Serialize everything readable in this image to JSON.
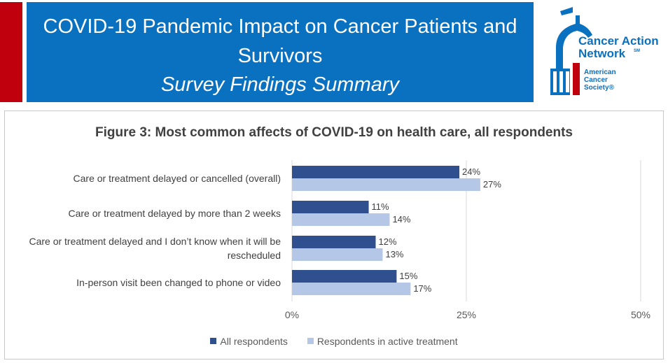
{
  "header": {
    "title": "COVID-19 Pandemic Impact on Cancer Patients and Survivors",
    "subtitle": "Survey Findings Summary"
  },
  "logo": {
    "line1": "Cancer Action",
    "line2": "Network",
    "mark": "SM",
    "org1": "American",
    "org2": "Cancer",
    "org3": "Society®"
  },
  "colors": {
    "accent_red": "#c0000c",
    "header_blue": "#0a70c0",
    "series_all": "#2f4f8f",
    "series_active": "#b4c7e7"
  },
  "chart_data": {
    "type": "bar",
    "orientation": "horizontal",
    "title": "Figure 3: Most common affects of COVID-19 on health care, all respondents",
    "categories": [
      "Care or treatment delayed or cancelled (overall)",
      "Care or treatment delayed by more than 2 weeks",
      "Care or treatment delayed and I don’t know when it will be rescheduled",
      "In-person visit been changed to phone or video"
    ],
    "series": [
      {
        "name": "All respondents",
        "values": [
          24,
          11,
          12,
          15
        ]
      },
      {
        "name": "Respondents in active treatment",
        "values": [
          27,
          14,
          13,
          17
        ]
      }
    ],
    "xlim": [
      0,
      50
    ],
    "xticks": [
      "0%",
      "25%",
      "50%"
    ],
    "value_suffix": "%",
    "grid": true,
    "legend_position": "bottom"
  }
}
